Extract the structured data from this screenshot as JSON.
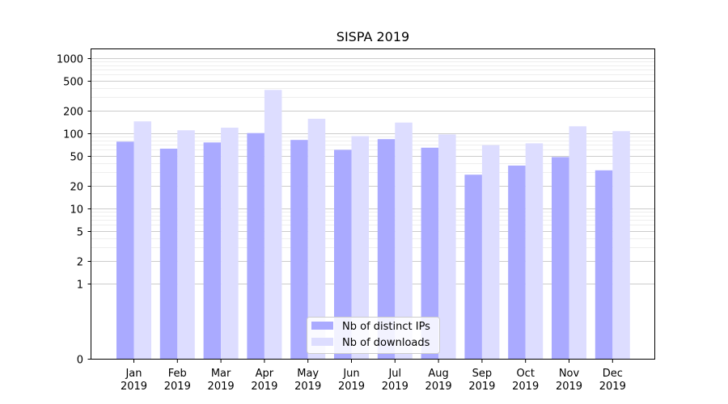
{
  "chart_data": {
    "type": "bar",
    "title": "SISPA 2019",
    "xlabel": "",
    "ylabel": "",
    "yscale": "symlog",
    "ylim": [
      0,
      1300
    ],
    "grid": "horizontal",
    "legend_position": "lower center",
    "categories": [
      [
        "Jan",
        "2019"
      ],
      [
        "Feb",
        "2019"
      ],
      [
        "Mar",
        "2019"
      ],
      [
        "Apr",
        "2019"
      ],
      [
        "May",
        "2019"
      ],
      [
        "Jun",
        "2019"
      ],
      [
        "Jul",
        "2019"
      ],
      [
        "Aug",
        "2019"
      ],
      [
        "Sep",
        "2019"
      ],
      [
        "Oct",
        "2019"
      ],
      [
        "Nov",
        "2019"
      ],
      [
        "Dec",
        "2019"
      ]
    ],
    "y_ticks": [
      0,
      1,
      2,
      5,
      10,
      20,
      50,
      100,
      200,
      500,
      1000
    ],
    "y_tick_labels": [
      "0",
      "1",
      "2",
      "5",
      "10",
      "20",
      "50",
      "100",
      "200",
      "500",
      "1000"
    ],
    "series": [
      {
        "name": "Nb of distinct IPs",
        "color": "#aaaaff",
        "values": [
          77,
          62,
          75,
          100,
          81,
          60,
          83,
          64,
          28,
          37,
          48,
          32
        ]
      },
      {
        "name": "Nb of downloads",
        "color": "#ddddff",
        "values": [
          143,
          109,
          118,
          375,
          155,
          91,
          138,
          96,
          69,
          73,
          123,
          106
        ]
      }
    ]
  }
}
